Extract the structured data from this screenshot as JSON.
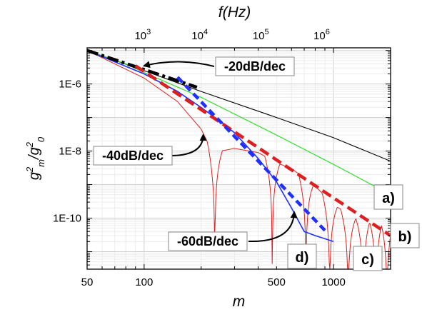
{
  "chart_data": {
    "type": "line",
    "x_scale": "log",
    "y_scale": "log",
    "xlabel": "m",
    "ylabel": "g2m/g20",
    "top_xlabel": "f(Hz)",
    "xlim": [
      50,
      2000
    ],
    "ylim": [
      3e-12,
      1.2e-05
    ],
    "x_ticks": [
      {
        "value": 50,
        "label": "50"
      },
      {
        "value": 100,
        "label": "100"
      },
      {
        "value": 500,
        "label": "500"
      },
      {
        "value": 1000,
        "label": "1000"
      }
    ],
    "y_ticks": [
      {
        "value": 1e-06,
        "label": "1E-6"
      },
      {
        "value": 1e-08,
        "label": "1E-8"
      },
      {
        "value": 1e-10,
        "label": "1E-10"
      }
    ],
    "top_ticks": [
      {
        "m": 100,
        "base": "10",
        "exp": "3"
      },
      {
        "m": 200,
        "base": "10",
        "exp": "4"
      },
      {
        "m": 420,
        "base": "10",
        "exp": "5"
      },
      {
        "m": 880,
        "base": "10",
        "exp": "6"
      }
    ],
    "grid": true,
    "series": [
      {
        "key": "a",
        "label": "a)",
        "color": "#000000",
        "points": [
          [
            50,
            1e-05
          ],
          [
            100,
            2.5e-06
          ],
          [
            200,
            6e-07
          ],
          [
            500,
            1e-07
          ],
          [
            1000,
            2.5e-08
          ],
          [
            2000,
            5e-09
          ]
        ]
      },
      {
        "key": "b",
        "label": "b)",
        "color": "#22dd22",
        "points": [
          [
            50,
            1e-05
          ],
          [
            80,
            4e-06
          ],
          [
            100,
            2.2e-06
          ],
          [
            200,
            4e-07
          ],
          [
            500,
            3e-08
          ],
          [
            1000,
            4e-09
          ],
          [
            2000,
            5e-10
          ]
        ]
      },
      {
        "key": "c",
        "label": "c)",
        "color": "#dd2222",
        "envelope": [
          [
            50,
            1e-05
          ],
          [
            100,
            1.5e-06
          ],
          [
            150,
            3e-07
          ],
          [
            200,
            4.5e-08
          ],
          [
            230,
            9e-09
          ],
          [
            300,
            1.2e-08
          ],
          [
            400,
            9e-09
          ],
          [
            500,
            4.5e-09
          ],
          [
            600,
            3e-09
          ],
          [
            800,
            9e-10
          ],
          [
            1000,
            2.5e-10
          ],
          [
            1300,
            1e-10
          ],
          [
            2000,
            1e-10
          ]
        ],
        "zeros": [
          236,
          475,
          715,
          955,
          1195,
          1435,
          1675,
          1915
        ]
      },
      {
        "key": "d",
        "label": "d)",
        "color": "#1f2fff",
        "points": [
          [
            50,
            1e-05
          ],
          [
            100,
            2e-06
          ],
          [
            150,
            6e-07
          ],
          [
            200,
            2e-07
          ],
          [
            250,
            8e-08
          ],
          [
            300,
            3.5e-08
          ],
          [
            400,
            6e-09
          ],
          [
            500,
            1.2e-09
          ],
          [
            600,
            2e-10
          ],
          [
            700,
            4e-11
          ],
          [
            800,
            3e-11
          ],
          [
            1000,
            2e-11
          ]
        ]
      }
    ],
    "asymptotes": [
      {
        "label": "-20dB/dec",
        "color": "#000000",
        "points": [
          [
            50,
            1e-05
          ],
          [
            190,
            8e-07
          ]
        ]
      },
      {
        "label": "-40dB/dec",
        "color": "#dd1f1f",
        "points": [
          [
            90,
            3.5e-06
          ],
          [
            1000,
            4e-10
          ],
          [
            2000,
            3e-11
          ]
        ]
      },
      {
        "label": "-60dB/dec",
        "color": "#1f2fff",
        "points": [
          [
            150,
            1.6e-06
          ],
          [
            900,
            4.3e-11
          ]
        ]
      }
    ],
    "annotations": [
      {
        "text": "-20dB/dec",
        "arrow_to": [
          100,
          3.5e-06
        ]
      },
      {
        "text": "-40dB/dec",
        "arrow_to": [
          205,
          3e-08
        ]
      },
      {
        "text": "-60dB/dec",
        "arrow_to": [
          620,
          1.5e-10
        ]
      }
    ]
  }
}
